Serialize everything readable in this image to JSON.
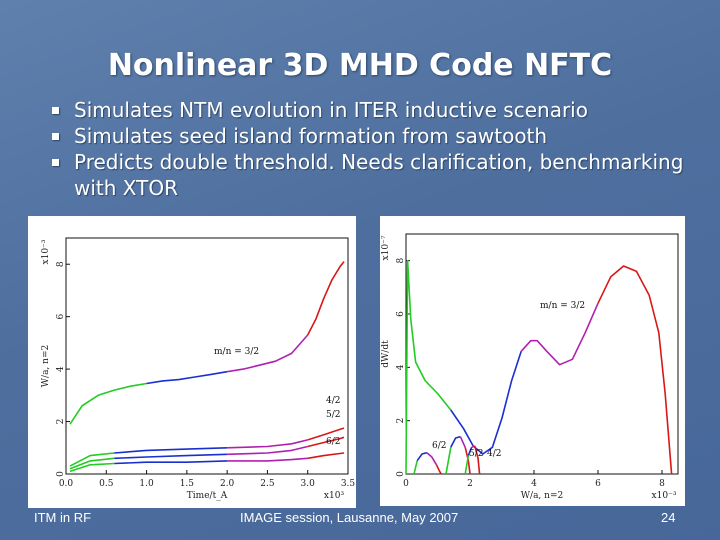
{
  "slide": {
    "title": "Nonlinear 3D MHD Code NFTC",
    "bullets": [
      "Simulates NTM evolution in ITER inductive scenario",
      "Simulates seed island formation from sawtooth",
      "Predicts double threshold. Needs clarification, benchmarking with XTOR"
    ],
    "footer": {
      "left": "ITM in RF",
      "center": "IMAGE session, Lausanne, May 2007",
      "right": "24"
    }
  },
  "chart_data": [
    {
      "type": "line",
      "xlabel": "Time/t_A",
      "ylabel": "W/a,  n=2",
      "x_exponent": "x10³",
      "y_exponent": "x10⁻³",
      "xlim": [
        0,
        3.5
      ],
      "ylim": [
        0,
        9
      ],
      "x_ticks": [
        "0.0",
        "0.5",
        "1.0",
        "1.5",
        "2.0",
        "2.5",
        "3.0",
        "3.5"
      ],
      "y_ticks": [
        "0",
        "2",
        "4",
        "6",
        "8"
      ],
      "series": [
        {
          "name": "m/n = 3/2",
          "x": [
            0.05,
            0.2,
            0.4,
            0.6,
            0.8,
            1.0,
            1.2,
            1.4,
            1.6,
            1.8,
            2.0,
            2.2,
            2.4,
            2.6,
            2.8,
            3.0,
            3.1,
            3.2,
            3.3,
            3.4,
            3.45
          ],
          "y": [
            1.9,
            2.6,
            3.0,
            3.2,
            3.35,
            3.45,
            3.55,
            3.6,
            3.7,
            3.8,
            3.9,
            4.0,
            4.15,
            4.3,
            4.6,
            5.3,
            5.9,
            6.7,
            7.4,
            7.9,
            8.1
          ],
          "colors": [
            "#22cc22",
            "#1a2fd0",
            "#b020b0",
            "#d81818"
          ]
        },
        {
          "name": "4/2",
          "x": [
            0.05,
            0.3,
            0.6,
            1.0,
            1.5,
            2.0,
            2.5,
            2.8,
            3.0,
            3.2,
            3.4,
            3.45
          ],
          "y": [
            0.3,
            0.7,
            0.8,
            0.9,
            0.95,
            1.0,
            1.05,
            1.15,
            1.3,
            1.5,
            1.7,
            1.75
          ],
          "colors": [
            "#22cc22",
            "#1a2fd0",
            "#b020b0",
            "#d81818"
          ]
        },
        {
          "name": "5/2",
          "x": [
            0.05,
            0.3,
            0.6,
            1.0,
            1.5,
            2.0,
            2.5,
            2.8,
            3.0,
            3.2,
            3.4,
            3.45
          ],
          "y": [
            0.2,
            0.5,
            0.6,
            0.65,
            0.7,
            0.75,
            0.8,
            0.9,
            1.05,
            1.2,
            1.35,
            1.4
          ],
          "colors": [
            "#22cc22",
            "#1a2fd0",
            "#b020b0",
            "#d81818"
          ]
        },
        {
          "name": "6/2",
          "x": [
            0.05,
            0.3,
            0.6,
            1.0,
            1.5,
            2.0,
            2.5,
            2.8,
            3.0,
            3.2,
            3.4,
            3.45
          ],
          "y": [
            0.1,
            0.35,
            0.4,
            0.45,
            0.45,
            0.5,
            0.5,
            0.55,
            0.6,
            0.7,
            0.78,
            0.8
          ],
          "colors": [
            "#22cc22",
            "#1a2fd0",
            "#b020b0",
            "#d81818"
          ]
        }
      ]
    },
    {
      "type": "line",
      "xlabel": "W/a,   n=2",
      "ylabel": "dW/dt",
      "x_exponent": "x10⁻³",
      "y_exponent": "x10⁻⁷",
      "xlim": [
        0,
        8.5
      ],
      "ylim": [
        0,
        9
      ],
      "x_ticks": [
        "0",
        "2",
        "4",
        "6",
        "8"
      ],
      "y_ticks": [
        "0",
        "2",
        "4",
        "6",
        "8"
      ],
      "series": [
        {
          "name": "m/n = 3/2",
          "x": [
            0.0,
            0.05,
            0.15,
            0.3,
            0.6,
            1.0,
            1.4,
            1.8,
            2.1,
            2.4,
            2.7,
            3.0,
            3.3,
            3.6,
            3.9,
            4.1,
            4.4,
            4.8,
            5.2,
            5.6,
            6.0,
            6.4,
            6.8,
            7.2,
            7.6,
            7.9,
            8.1,
            8.3
          ],
          "y": [
            0.0,
            8.0,
            5.8,
            4.2,
            3.5,
            3.0,
            2.4,
            1.7,
            1.05,
            0.75,
            1.0,
            2.1,
            3.5,
            4.6,
            5.0,
            5.0,
            4.6,
            4.1,
            4.3,
            5.3,
            6.4,
            7.4,
            7.8,
            7.6,
            6.7,
            5.3,
            3.0,
            0.0
          ],
          "colors": [
            "#22cc22",
            "#1a2fd0",
            "#b020b0",
            "#d81818"
          ]
        },
        {
          "name": "4/2",
          "x": [
            0.25,
            0.35,
            0.5,
            0.65,
            0.8,
            0.95,
            1.05,
            1.1
          ],
          "y": [
            0.0,
            0.5,
            0.75,
            0.8,
            0.65,
            0.35,
            0.1,
            0.0
          ],
          "colors": [
            "#22cc22",
            "#1a2fd0",
            "#b020b0",
            "#d81818"
          ]
        },
        {
          "name": "5/2",
          "x": [
            1.25,
            1.4,
            1.55,
            1.7,
            1.85,
            1.95,
            2.0
          ],
          "y": [
            0.0,
            1.0,
            1.35,
            1.4,
            1.0,
            0.5,
            0.0
          ],
          "colors": [
            "#22cc22",
            "#1a2fd0",
            "#b020b0",
            "#d81818"
          ]
        },
        {
          "name": "6/2",
          "x": [
            1.85,
            1.95,
            2.05,
            2.15,
            2.25,
            2.3
          ],
          "y": [
            0.0,
            0.7,
            1.0,
            1.05,
            0.6,
            0.0
          ],
          "colors": [
            "#22cc22",
            "#1a2fd0",
            "#b020b0",
            "#d81818"
          ]
        }
      ],
      "series_labels": [
        "m/n = 3/2",
        "6/2",
        "5/2",
        "4/2"
      ]
    }
  ]
}
